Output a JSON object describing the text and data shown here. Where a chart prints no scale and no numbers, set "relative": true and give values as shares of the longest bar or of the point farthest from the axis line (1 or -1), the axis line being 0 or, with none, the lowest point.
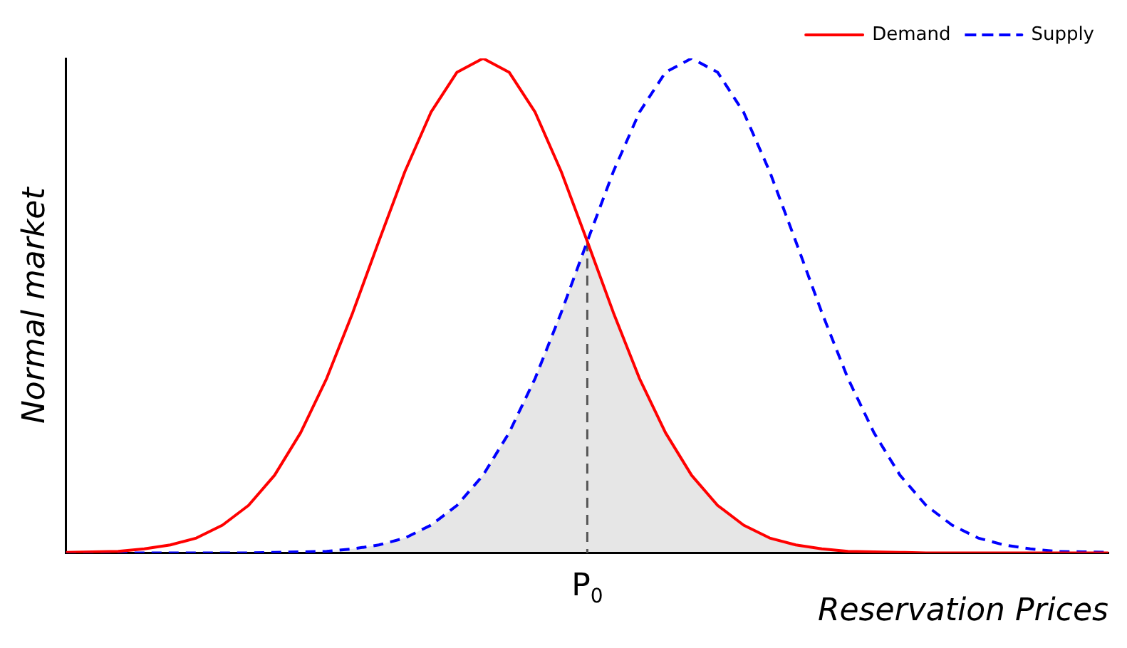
{
  "chart_data": {
    "type": "line",
    "relative": true,
    "xlabel": "Reservation Prices",
    "ylabel": "Normal market",
    "legend": "top right",
    "grid": false,
    "categories": [
      null,
      null,
      null,
      null,
      null,
      null,
      null,
      null,
      null,
      null,
      null,
      null,
      null,
      null,
      null,
      null,
      null,
      null,
      null,
      null,
      null,
      null,
      null,
      null,
      null,
      null,
      null,
      null,
      null,
      null,
      null,
      null,
      null,
      null,
      null,
      null,
      null,
      null,
      null,
      null,
      null
    ],
    "series": [
      {
        "name": "Demand",
        "color": "#ff0000",
        "line_style": "solid",
        "values": [
          0.001,
          0.002,
          0.003,
          0.008,
          0.016,
          0.03,
          0.056,
          0.096,
          0.157,
          0.243,
          0.353,
          0.486,
          0.63,
          0.771,
          0.891,
          0.972,
          1,
          0.972,
          0.891,
          0.771,
          0.63,
          0.486,
          0.353,
          0.243,
          0.157,
          0.096,
          0.056,
          0.03,
          0.016,
          0.008,
          0.003,
          0.002,
          0.001,
          0,
          0,
          0,
          0,
          0,
          0,
          0,
          0
        ]
      },
      {
        "name": "Supply",
        "color": "#0000ff",
        "line_style": "dashed",
        "values": [
          0,
          0,
          0,
          0,
          0,
          0,
          0,
          0,
          0.001,
          0.002,
          0.003,
          0.008,
          0.016,
          0.03,
          0.056,
          0.096,
          0.157,
          0.243,
          0.353,
          0.486,
          0.63,
          0.771,
          0.891,
          0.972,
          1,
          0.972,
          0.891,
          0.771,
          0.63,
          0.486,
          0.353,
          0.243,
          0.157,
          0.096,
          0.056,
          0.03,
          0.016,
          0.008,
          0.003,
          0.002,
          0.001
        ]
      }
    ],
    "annotations": [
      "P$_{0}$"
    ]
  }
}
